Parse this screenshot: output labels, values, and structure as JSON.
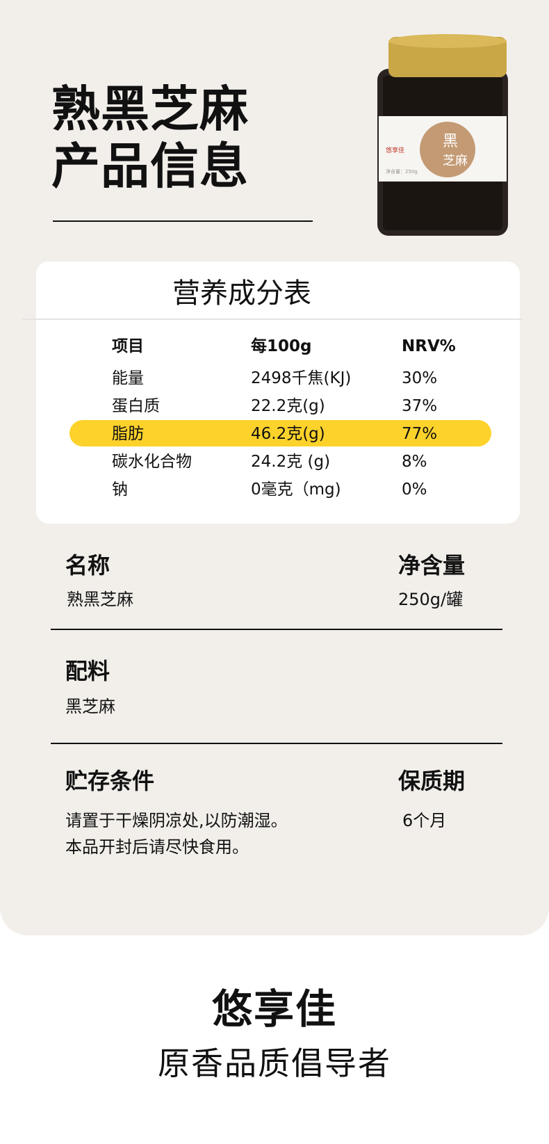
{
  "header": {
    "title_line1": "熟黑芝麻",
    "title_line2": "产品信息"
  },
  "product_image": {
    "label_brand": "悠享佳",
    "label_name": "黑芝麻",
    "label_net": "净含量：250g",
    "cap_color": "#c9a646"
  },
  "nutrition": {
    "title": "营养成分表",
    "columns": [
      "项目",
      "每100g",
      "NRV%"
    ],
    "rows": [
      [
        "能量",
        "2498千焦(KJ)",
        "30%"
      ],
      [
        "蛋白质",
        "22.2克(g)",
        "37%"
      ],
      [
        "脂肪",
        "46.2克(g)",
        "77%"
      ],
      [
        "碳水化合物",
        "24.2克 (g)",
        "8%"
      ],
      [
        "钠",
        "0毫克（mg)",
        "0%"
      ]
    ],
    "highlight_color": "#fdd22b"
  },
  "info": {
    "name_label": "名称",
    "name_value": "熟黑芝麻",
    "net_label": "净含量",
    "net_value": "250g/罐",
    "ingredients_label": "配料",
    "ingredients_value": "黑芝麻",
    "storage_label": "贮存条件",
    "storage_line1": "请置于干燥阴凉处,以防潮湿。",
    "storage_line2": "本品开封后请尽快食用。",
    "shelf_label": "保质期",
    "shelf_value": "6个月"
  },
  "footer": {
    "brand": "悠享佳",
    "slogan": "原香品质倡导者"
  }
}
